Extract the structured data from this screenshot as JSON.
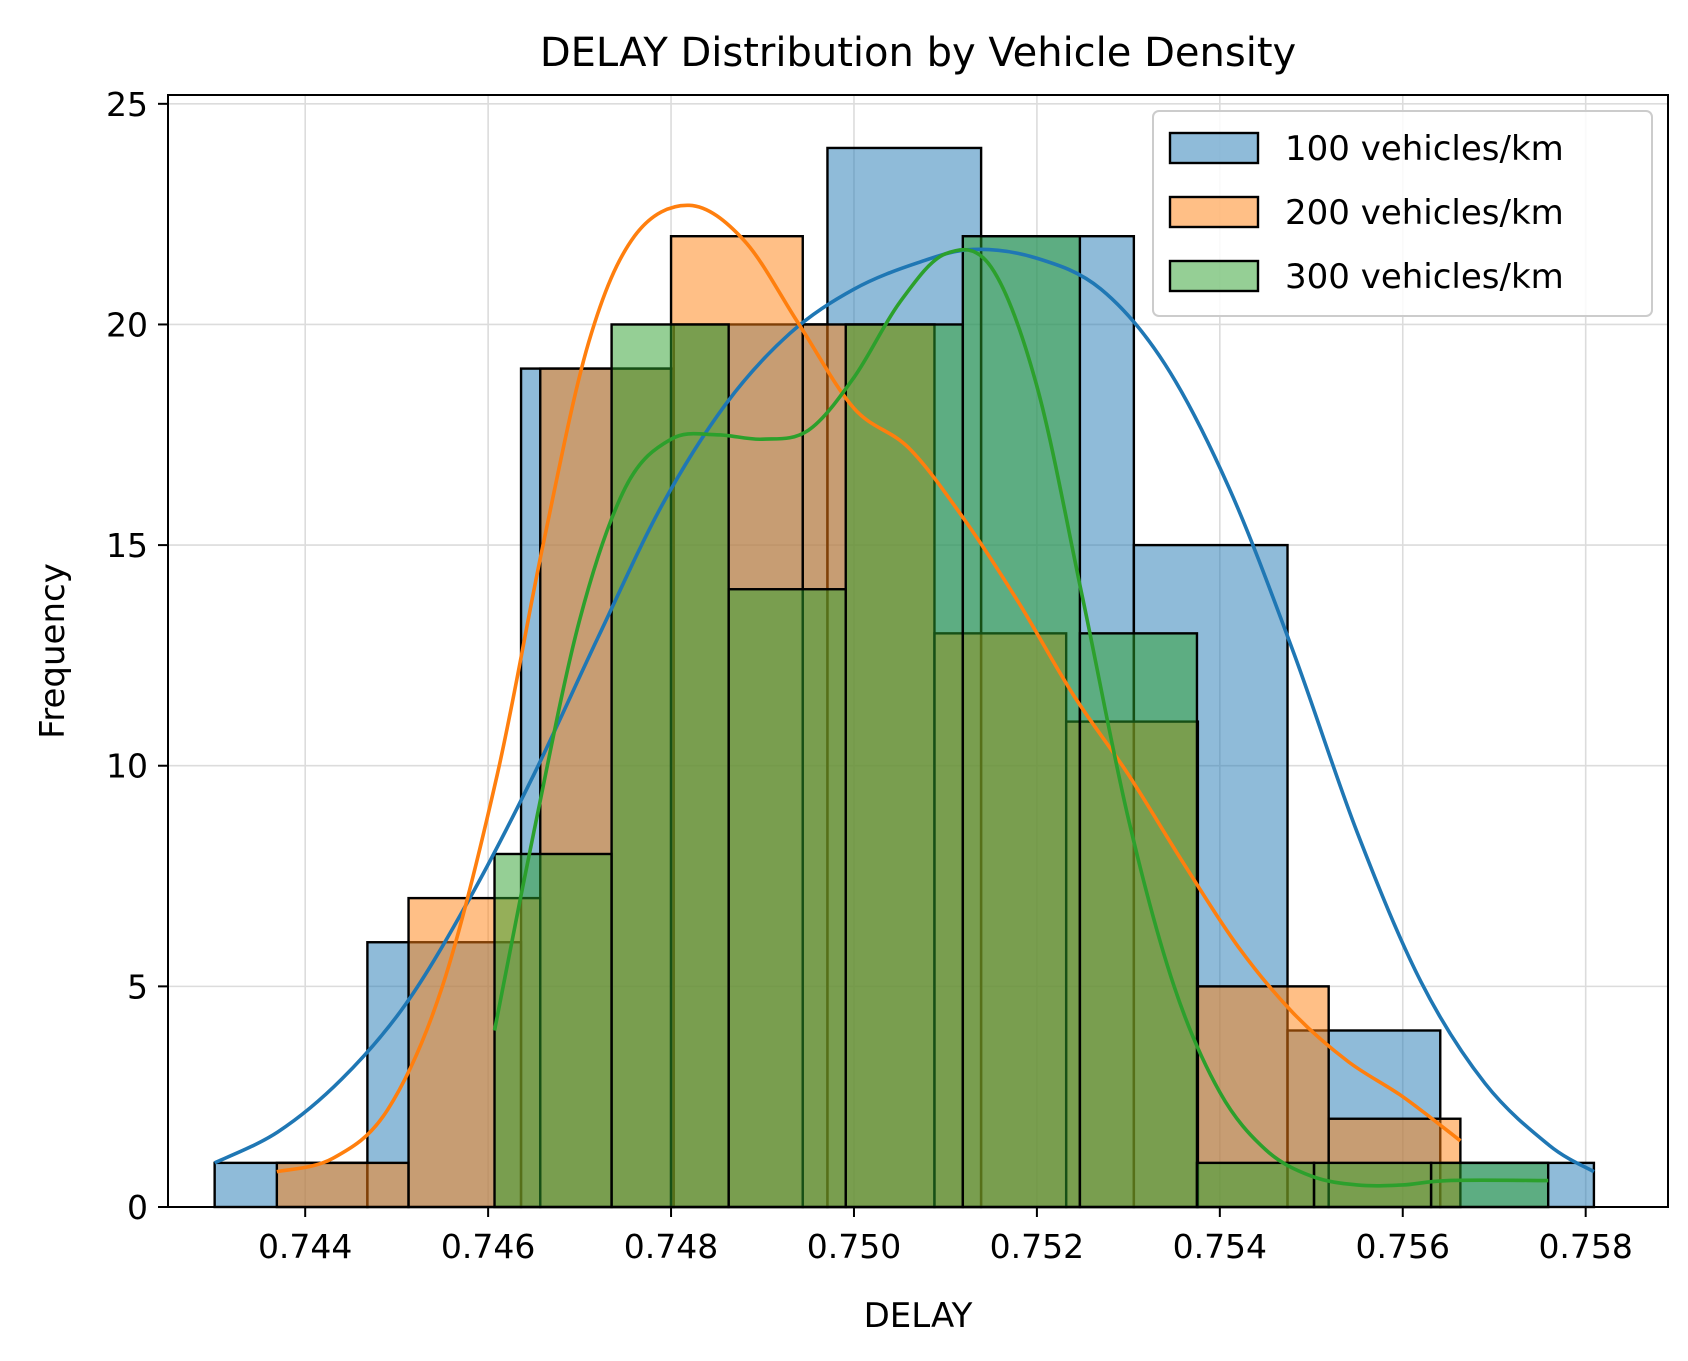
{
  "chart_data": {
    "type": "bar",
    "title": "DELAY Distribution by Vehicle Density",
    "xlabel": "DELAY",
    "ylabel": "Frequency",
    "xlim": [
      0.7425,
      0.7589
    ],
    "ylim": [
      0,
      25.2
    ],
    "xticks": [
      "0.744",
      "0.746",
      "0.748",
      "0.750",
      "0.752",
      "0.754",
      "0.756",
      "0.758"
    ],
    "xtick_values": [
      0.744,
      0.746,
      0.748,
      0.75,
      0.752,
      0.754,
      0.756,
      0.758
    ],
    "yticks": [
      "0",
      "5",
      "10",
      "15",
      "20",
      "25"
    ],
    "ytick_values": [
      0,
      5,
      10,
      15,
      20,
      25
    ],
    "grid": true,
    "legend_position": "top-right",
    "series": [
      {
        "name": "100 vehicles/km",
        "color": "#1f77b4",
        "bin_edges": [
          0.74301,
          0.74468,
          0.74636,
          0.74803,
          0.74971,
          0.75139,
          0.75306,
          0.75474,
          0.75641,
          0.75809
        ],
        "counts": [
          1,
          6,
          19,
          20,
          24,
          22,
          15,
          4,
          1
        ],
        "kde": [
          [
            0.74301,
            1.0
          ],
          [
            0.7437,
            1.7
          ],
          [
            0.7444,
            2.9
          ],
          [
            0.7451,
            4.6
          ],
          [
            0.7458,
            7.0
          ],
          [
            0.7465,
            9.8
          ],
          [
            0.7472,
            12.9
          ],
          [
            0.7479,
            15.9
          ],
          [
            0.7486,
            18.2
          ],
          [
            0.7493,
            19.8
          ],
          [
            0.75,
            20.8
          ],
          [
            0.7507,
            21.4
          ],
          [
            0.7513,
            21.7
          ],
          [
            0.752,
            21.5
          ],
          [
            0.7527,
            20.8
          ],
          [
            0.7534,
            19.1
          ],
          [
            0.7541,
            16.3
          ],
          [
            0.7548,
            12.6
          ],
          [
            0.7555,
            8.5
          ],
          [
            0.7562,
            5.1
          ],
          [
            0.7569,
            2.8
          ],
          [
            0.7576,
            1.4
          ],
          [
            0.75809,
            0.8
          ]
        ]
      },
      {
        "name": "200 vehicles/km",
        "color": "#ff7f0e",
        "bin_edges": [
          0.74369,
          0.74513,
          0.74657,
          0.748,
          0.74944,
          0.75088,
          0.75232,
          0.75376,
          0.75519,
          0.75663
        ],
        "counts": [
          1,
          7,
          19,
          22,
          20,
          13,
          11,
          5,
          2
        ],
        "kde": [
          [
            0.74369,
            0.8
          ],
          [
            0.7443,
            1.1
          ],
          [
            0.7449,
            2.2
          ],
          [
            0.7455,
            5.0
          ],
          [
            0.7461,
            9.8
          ],
          [
            0.7466,
            15.0
          ],
          [
            0.7471,
            19.6
          ],
          [
            0.7476,
            22.0
          ],
          [
            0.7482,
            22.7
          ],
          [
            0.7488,
            21.9
          ],
          [
            0.7494,
            20.0
          ],
          [
            0.75,
            18.1
          ],
          [
            0.7506,
            17.2
          ],
          [
            0.7512,
            15.6
          ],
          [
            0.7518,
            13.7
          ],
          [
            0.7524,
            11.6
          ],
          [
            0.753,
            9.8
          ],
          [
            0.7536,
            7.8
          ],
          [
            0.7542,
            5.9
          ],
          [
            0.7548,
            4.4
          ],
          [
            0.7554,
            3.3
          ],
          [
            0.756,
            2.5
          ],
          [
            0.75663,
            1.5
          ]
        ]
      },
      {
        "name": "300 vehicles/km",
        "color": "#2ca02c",
        "bin_edges": [
          0.74607,
          0.74735,
          0.74863,
          0.74991,
          0.75119,
          0.75247,
          0.75375,
          0.75503,
          0.75631,
          0.75759
        ],
        "counts": [
          8,
          20,
          14,
          20,
          22,
          13,
          1,
          1,
          1
        ],
        "kde": [
          [
            0.74607,
            4.0
          ],
          [
            0.7465,
            8.5
          ],
          [
            0.747,
            13.3
          ],
          [
            0.7475,
            16.3
          ],
          [
            0.748,
            17.4
          ],
          [
            0.7485,
            17.5
          ],
          [
            0.749,
            17.4
          ],
          [
            0.7495,
            17.6
          ],
          [
            0.75,
            18.8
          ],
          [
            0.7505,
            20.5
          ],
          [
            0.751,
            21.6
          ],
          [
            0.7515,
            21.3
          ],
          [
            0.752,
            18.6
          ],
          [
            0.7525,
            13.8
          ],
          [
            0.753,
            8.8
          ],
          [
            0.7535,
            5.0
          ],
          [
            0.754,
            2.6
          ],
          [
            0.7545,
            1.3
          ],
          [
            0.755,
            0.7
          ],
          [
            0.7555,
            0.5
          ],
          [
            0.756,
            0.5
          ],
          [
            0.7565,
            0.6
          ],
          [
            0.75759,
            0.6
          ]
        ]
      }
    ]
  }
}
